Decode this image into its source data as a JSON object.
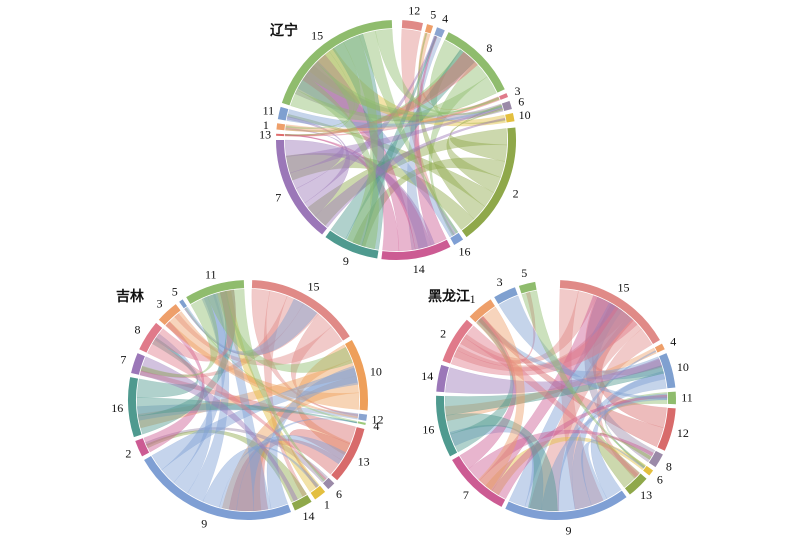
{
  "diagrams": [
    {
      "title": "辽宁",
      "segments": [
        {
          "label": "12",
          "start": 3,
          "end": 13,
          "color": "#e08a87"
        },
        {
          "label": "5",
          "start": 15,
          "end": 18,
          "color": "#ee9f6a"
        },
        {
          "label": "4",
          "start": 20,
          "end": 24,
          "color": "#8aa4d0"
        },
        {
          "label": "8",
          "start": 26,
          "end": 65,
          "color": "#8fbc6d"
        },
        {
          "label": "3",
          "start": 67,
          "end": 69,
          "color": "#e07a8a"
        },
        {
          "label": "6",
          "start": 71,
          "end": 75,
          "color": "#9b8aa8"
        },
        {
          "label": "10",
          "start": 77,
          "end": 81,
          "color": "#e3bf3f"
        },
        {
          "label": "2",
          "start": 84,
          "end": 144,
          "color": "#8fa84a"
        },
        {
          "label": "16",
          "start": 146,
          "end": 151,
          "color": "#7f9fd4"
        },
        {
          "label": "14",
          "start": 153,
          "end": 187,
          "color": "#cc5b93"
        },
        {
          "label": "9",
          "start": 189,
          "end": 216,
          "color": "#4f9a8f"
        },
        {
          "label": "7",
          "start": 218,
          "end": 270,
          "color": "#9b77b8"
        },
        {
          "label": "13",
          "start": 272,
          "end": 273,
          "color": "#e06c6c"
        },
        {
          "label": "1",
          "start": 275,
          "end": 278,
          "color": "#ee9f6a"
        },
        {
          "label": "11",
          "start": 280,
          "end": 286,
          "color": "#7fa0d0"
        },
        {
          "label": "15",
          "start": 288,
          "end": 358,
          "color": "#8fbc6d"
        }
      ]
    },
    {
      "title": "吉林",
      "segments": [
        {
          "label": "15",
          "start": 2,
          "end": 58,
          "color": "#e08a87"
        },
        {
          "label": "10",
          "start": 60,
          "end": 95,
          "color": "#ee9f5a"
        },
        {
          "label": "12",
          "start": 97,
          "end": 100,
          "color": "#8aa4d0"
        },
        {
          "label": "4",
          "start": 101,
          "end": 102,
          "color": "#9cc97a"
        },
        {
          "label": "13",
          "start": 104,
          "end": 132,
          "color": "#d86b6b"
        },
        {
          "label": "6",
          "start": 134,
          "end": 138,
          "color": "#9b8aa8"
        },
        {
          "label": "1",
          "start": 140,
          "end": 146,
          "color": "#e3bf3f"
        },
        {
          "label": "14",
          "start": 148,
          "end": 157,
          "color": "#8fa84a"
        },
        {
          "label": "9",
          "start": 159,
          "end": 240,
          "color": "#7f9fd4"
        },
        {
          "label": "2",
          "start": 242,
          "end": 250,
          "color": "#cc5b93"
        },
        {
          "label": "16",
          "start": 252,
          "end": 281,
          "color": "#4f9a8f"
        },
        {
          "label": "7",
          "start": 283,
          "end": 293,
          "color": "#9b77b8"
        },
        {
          "label": "8",
          "start": 295,
          "end": 310,
          "color": "#e07a8a"
        },
        {
          "label": "3",
          "start": 312,
          "end": 323,
          "color": "#ee9f6a"
        },
        {
          "label": "5",
          "start": 325,
          "end": 327,
          "color": "#7fa0d0"
        },
        {
          "label": "11",
          "start": 329,
          "end": 358,
          "color": "#8fbc6d"
        }
      ]
    },
    {
      "title": "黑龙江",
      "segments": [
        {
          "label": "15",
          "start": 2,
          "end": 60,
          "color": "#e08a87"
        },
        {
          "label": "4",
          "start": 62,
          "end": 65,
          "color": "#ee9f6a"
        },
        {
          "label": "10",
          "start": 67,
          "end": 84,
          "color": "#7fa0d0"
        },
        {
          "label": "11",
          "start": 86,
          "end": 92,
          "color": "#8fbc6d"
        },
        {
          "label": "12",
          "start": 94,
          "end": 115,
          "color": "#d86b6b"
        },
        {
          "label": "8",
          "start": 117,
          "end": 124,
          "color": "#9b8aa8"
        },
        {
          "label": "6",
          "start": 126,
          "end": 129,
          "color": "#e3bf3f"
        },
        {
          "label": "13",
          "start": 131,
          "end": 142,
          "color": "#8fa84a"
        },
        {
          "label": "9",
          "start": 144,
          "end": 205,
          "color": "#7f9fd4"
        },
        {
          "label": "7",
          "start": 207,
          "end": 240,
          "color": "#cc5b93"
        },
        {
          "label": "16",
          "start": 242,
          "end": 272,
          "color": "#4f9a8f"
        },
        {
          "label": "14",
          "start": 274,
          "end": 287,
          "color": "#9b77b8"
        },
        {
          "label": "2",
          "start": 289,
          "end": 312,
          "color": "#e07a8a"
        },
        {
          "label": "1",
          "start": 314,
          "end": 327,
          "color": "#ee9f6a"
        },
        {
          "label": "3",
          "start": 329,
          "end": 340,
          "color": "#7fa0d0"
        },
        {
          "label": "5",
          "start": 342,
          "end": 350,
          "color": "#8fbc6d"
        }
      ]
    }
  ]
}
